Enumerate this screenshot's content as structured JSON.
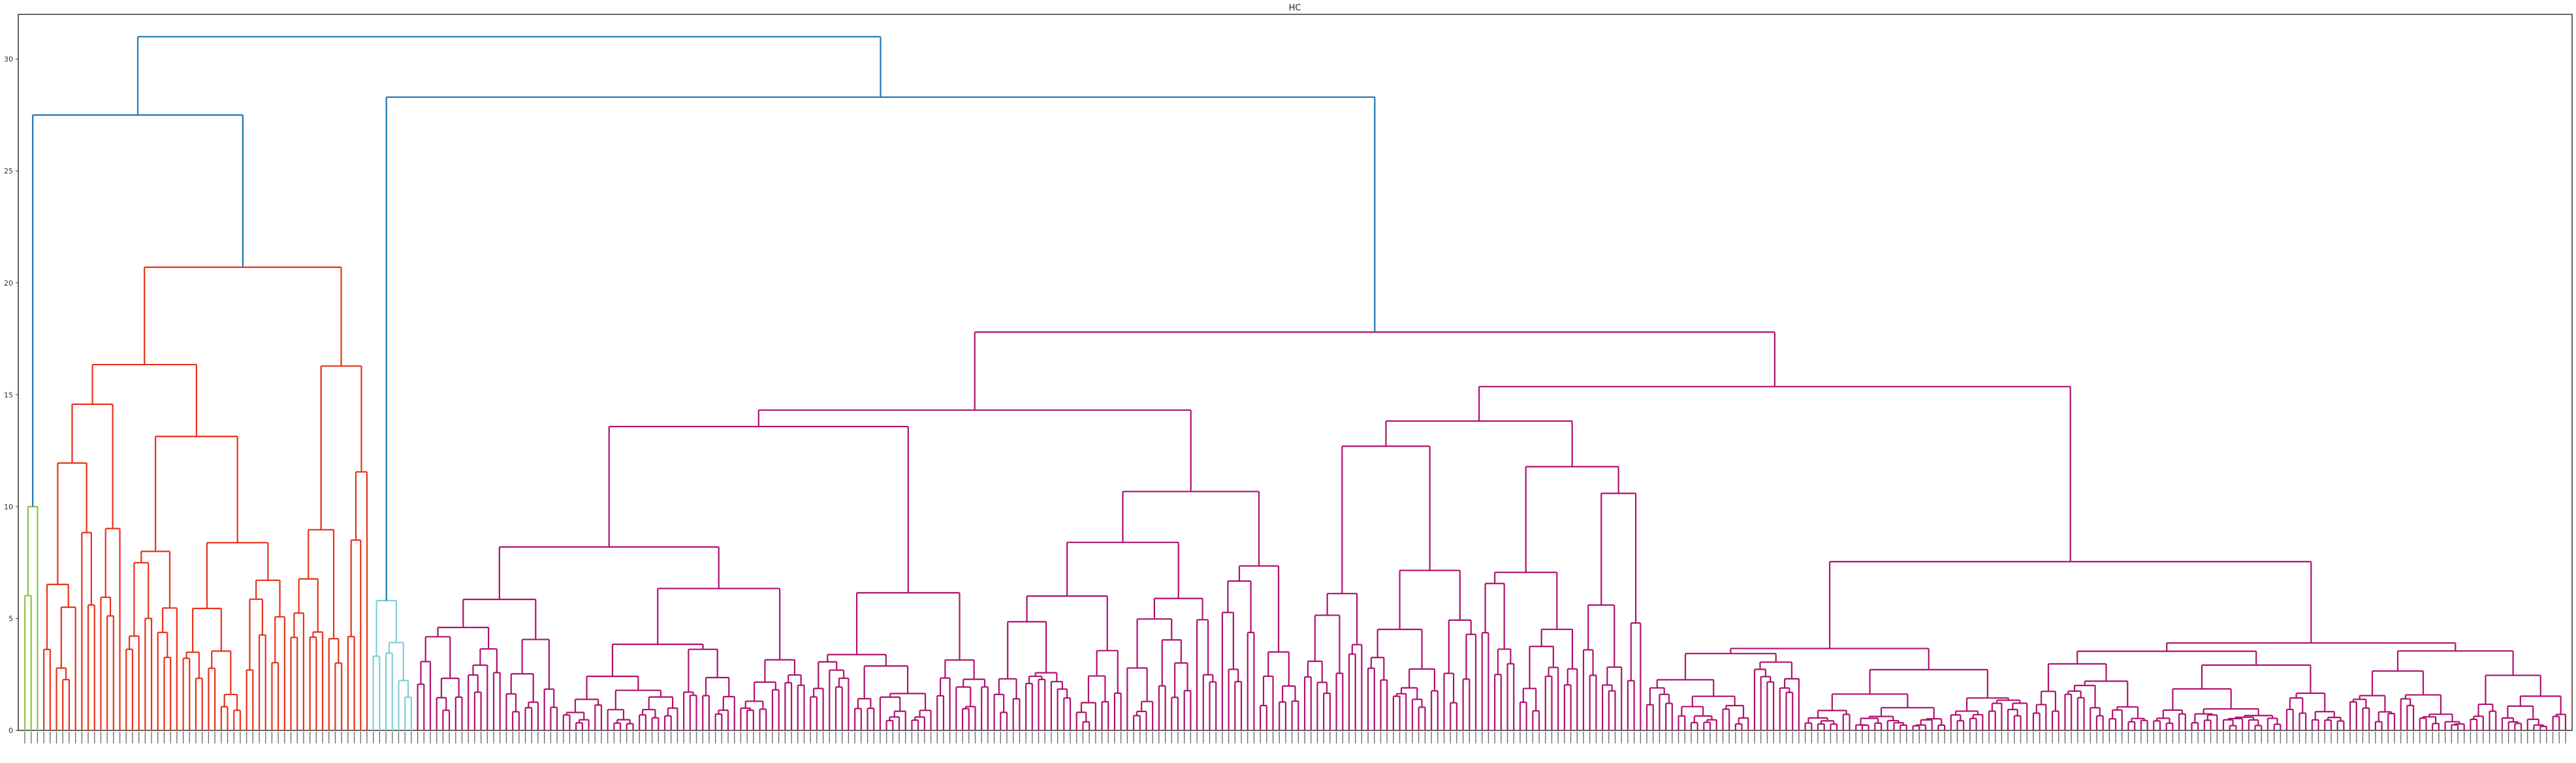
{
  "chart_data": {
    "type": "dendrogram",
    "title": "HC",
    "xlabel": "",
    "ylabel": "",
    "ylim": [
      0,
      32
    ],
    "yticks": [
      0,
      5,
      10,
      15,
      20,
      25,
      30
    ],
    "grid": false,
    "legend": "none",
    "leaf_labels": "unreadable (rotated, overlapping)",
    "root": {
      "height": 31.0,
      "color": "#1f77b4",
      "children": [
        {
          "height": 27.5,
          "color": "#1f77b4",
          "children": [
            {
              "height": 10.0,
              "color": "#8bc34a",
              "leaves": 3
            },
            {
              "height": 20.7,
              "color": "#e8311a",
              "leaves": 52
            }
          ]
        },
        {
          "height": 28.3,
          "color": "#1f77b4",
          "children": [
            {
              "height": 5.8,
              "color": "#7fcfd6",
              "leaves": 7
            },
            {
              "height": 17.8,
              "color": "#b0116e",
              "leaves": 340
            }
          ]
        }
      ]
    },
    "colors": {
      "above_threshold": "#1f77b4",
      "clusters": [
        "#8bc34a",
        "#e8311a",
        "#7fcfd6",
        "#b0116e"
      ]
    }
  }
}
